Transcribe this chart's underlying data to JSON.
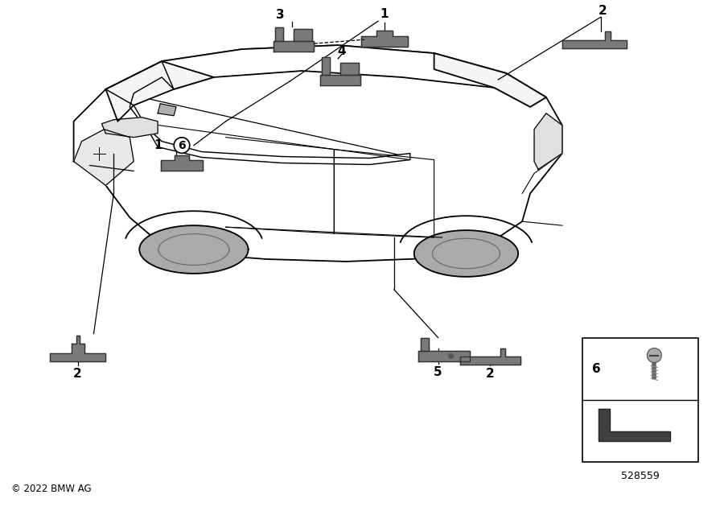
{
  "background_color": "#ffffff",
  "copyright_text": "© 2022 BMW AG",
  "diagram_number": "528559",
  "fig_width": 9.0,
  "fig_height": 6.3,
  "dpi": 100,
  "part_color": "#7a7a7a",
  "line_color": "#000000",
  "label_fontsize": 11,
  "copyright_fontsize": 8.5,
  "diagram_num_fontsize": 9
}
